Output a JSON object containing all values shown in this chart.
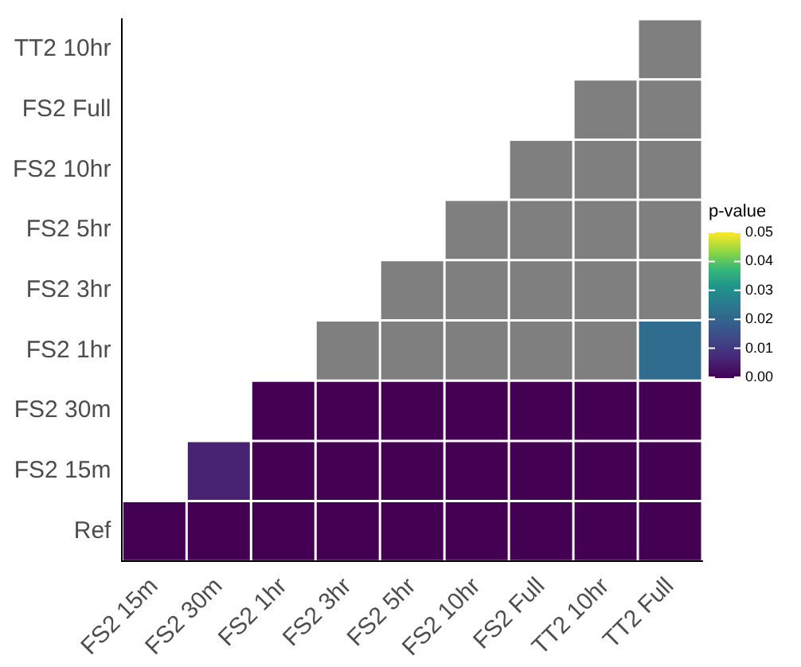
{
  "chart_data": {
    "type": "heatmap",
    "legend_title": "p-value",
    "categories": [
      "FS2 15m",
      "FS2 30m",
      "FS2 1hr",
      "FS2 3hr",
      "FS2 5hr",
      "FS2 10hr",
      "FS2 Full",
      "TT2 10hr",
      "TT2 Full"
    ],
    "y_categories": [
      "TT2 10hr",
      "FS2 Full",
      "FS2 10hr",
      "FS2 5hr",
      "FS2 3hr",
      "FS2 1hr",
      "FS2 30m",
      "FS2 15m",
      "Ref"
    ],
    "cells": [
      [
        null,
        null,
        null,
        null,
        null,
        null,
        null,
        null,
        null
      ],
      [
        null,
        null,
        null,
        null,
        null,
        null,
        null,
        null,
        null
      ],
      [
        null,
        null,
        null,
        null,
        null,
        null,
        null,
        null,
        null
      ],
      [
        null,
        null,
        null,
        null,
        null,
        null,
        null,
        null,
        null
      ],
      [
        null,
        null,
        null,
        null,
        null,
        null,
        null,
        null,
        null
      ],
      [
        null,
        null,
        null,
        null,
        null,
        null,
        null,
        null,
        0.022
      ],
      [
        null,
        null,
        0,
        0,
        0,
        0,
        0,
        0,
        0
      ],
      [
        null,
        0.006,
        0,
        0,
        0,
        0,
        0,
        0,
        0
      ],
      [
        0,
        0,
        0,
        0,
        0,
        0,
        0,
        0,
        0
      ]
    ],
    "clim": [
      0,
      0.05
    ],
    "cticks": [
      {
        "value": 0,
        "label": "0.00"
      },
      {
        "value": 0.01,
        "label": "0.01"
      },
      {
        "value": 0.02,
        "label": "0.02"
      },
      {
        "value": 0.03,
        "label": "0.03"
      },
      {
        "value": 0.04,
        "label": "0.04"
      },
      {
        "value": 0.05,
        "label": "0.05"
      }
    ]
  }
}
